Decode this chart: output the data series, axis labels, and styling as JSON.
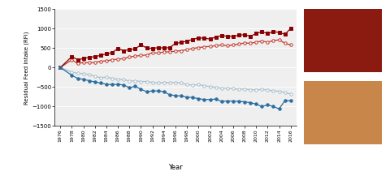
{
  "years": [
    1976,
    1978,
    1979,
    1980,
    1981,
    1982,
    1983,
    1984,
    1985,
    1986,
    1987,
    1988,
    1989,
    1990,
    1991,
    1992,
    1993,
    1994,
    1995,
    1996,
    1997,
    1998,
    1999,
    2000,
    2001,
    2002,
    2003,
    2004,
    2005,
    2006,
    2007,
    2008,
    2009,
    2010,
    2011,
    2012,
    2013,
    2014,
    2015,
    2016
  ],
  "R_plus_female": [
    0,
    200,
    100,
    130,
    120,
    130,
    160,
    170,
    200,
    210,
    230,
    270,
    290,
    310,
    320,
    380,
    370,
    400,
    400,
    420,
    430,
    460,
    490,
    510,
    530,
    540,
    560,
    580,
    560,
    580,
    600,
    630,
    620,
    650,
    680,
    650,
    690,
    710,
    620,
    580
  ],
  "R_plus_male": [
    0,
    280,
    200,
    230,
    260,
    280,
    310,
    350,
    380,
    490,
    430,
    460,
    480,
    580,
    500,
    490,
    510,
    500,
    510,
    620,
    640,
    680,
    720,
    760,
    750,
    730,
    780,
    820,
    800,
    800,
    830,
    840,
    800,
    870,
    920,
    870,
    920,
    900,
    850,
    1000
  ],
  "R_minus_female": [
    0,
    -120,
    -150,
    -160,
    -180,
    -230,
    -260,
    -250,
    -280,
    -300,
    -310,
    -350,
    -340,
    -360,
    -360,
    -380,
    -400,
    -380,
    -390,
    -380,
    -400,
    -440,
    -450,
    -440,
    -470,
    -490,
    -510,
    -530,
    -530,
    -540,
    -560,
    -550,
    -570,
    -580,
    -560,
    -580,
    -600,
    -610,
    -640,
    -680
  ],
  "R_minus_male": [
    0,
    -200,
    -280,
    -300,
    -340,
    -370,
    -400,
    -430,
    -440,
    -430,
    -450,
    -520,
    -480,
    -560,
    -620,
    -600,
    -600,
    -620,
    -700,
    -720,
    -730,
    -760,
    -770,
    -800,
    -820,
    -820,
    -810,
    -870,
    -860,
    -860,
    -870,
    -880,
    -900,
    -940,
    -1000,
    -960,
    -1000,
    -1060,
    -850,
    -850
  ],
  "color_red_open": "#c0392b",
  "color_red_filled": "#8b0000",
  "color_blue_open": "#a8becc",
  "color_blue_filled": "#2c6ea0",
  "ylabel": "Residual Feed Intake (RFI)",
  "xlabel": "Year",
  "ylim": [
    -1500,
    1500
  ],
  "yticks": [
    -1500,
    -1000,
    -500,
    0,
    500,
    1000,
    1500
  ],
  "bg_color": "#efefef"
}
